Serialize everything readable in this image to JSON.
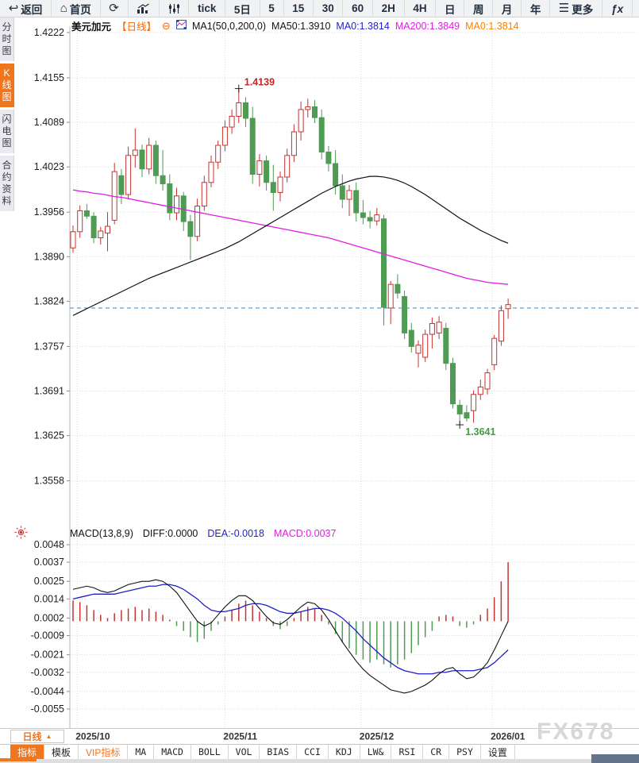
{
  "toolbar": {
    "items": [
      {
        "name": "back",
        "label": "返回",
        "icon": "back-icon"
      },
      {
        "name": "home",
        "label": "首页",
        "icon": "home-icon"
      },
      {
        "name": "refresh",
        "label": "",
        "icon": "refresh-icon"
      },
      {
        "name": "chart-type-bar",
        "label": "",
        "icon": "bar-chart-icon"
      },
      {
        "name": "chart-type-candle",
        "label": "",
        "icon": "sliders-icon"
      },
      {
        "name": "interval-tick",
        "label": "tick",
        "icon": ""
      },
      {
        "name": "interval-5day",
        "label": "5日",
        "icon": ""
      },
      {
        "name": "interval-5min",
        "label": "5",
        "icon": ""
      },
      {
        "name": "interval-15min",
        "label": "15",
        "icon": ""
      },
      {
        "name": "interval-30min",
        "label": "30",
        "icon": ""
      },
      {
        "name": "interval-60min",
        "label": "60",
        "icon": ""
      },
      {
        "name": "interval-2h",
        "label": "2H",
        "icon": ""
      },
      {
        "name": "interval-day",
        "label": "4H",
        "icon": ""
      },
      {
        "name": "interval-daily",
        "label": "日",
        "icon": ""
      },
      {
        "name": "interval-week",
        "label": "周",
        "icon": ""
      },
      {
        "name": "interval-month",
        "label": "月",
        "icon": ""
      },
      {
        "name": "interval-year",
        "label": "年",
        "icon": ""
      },
      {
        "name": "more",
        "label": "更多",
        "icon": "menu-icon"
      },
      {
        "name": "formula",
        "label": "",
        "icon": "fx-icon"
      },
      {
        "name": "zoom-out",
        "label": "",
        "icon": "zoom-out-icon"
      }
    ]
  },
  "sidebar": {
    "items": [
      {
        "label": "分时图",
        "selected": false
      },
      {
        "label": "K线图",
        "selected": true
      },
      {
        "label": "闪电图",
        "selected": false
      },
      {
        "label": "合约资料",
        "selected": false
      }
    ]
  },
  "symbol_header": {
    "symbol": "美元加元",
    "period": "【日线】",
    "ma_settings": "MA1(50,0,200,0)",
    "ma50": "MA50:1.3910",
    "ma0_blue": "MA0:1.3814",
    "ma200": "MA200:1.3849",
    "ma0_orange": "MA0:1.3814"
  },
  "macd_header": {
    "title": "MACD(13,8,9)",
    "diff": "DIFF:0.0000",
    "dea": "DEA:-0.0018",
    "macd": "MACD:0.0037"
  },
  "footer": {
    "period_button": "日线",
    "watermark": "FX678",
    "tabs": [
      {
        "label": "指标",
        "selected": true
      },
      {
        "label": "模板"
      },
      {
        "label": "VIP指标",
        "vip": true
      },
      {
        "label": "MA"
      },
      {
        "label": "MACD"
      },
      {
        "label": "BOLL"
      },
      {
        "label": "VOL"
      },
      {
        "label": "BIAS"
      },
      {
        "label": "CCI"
      },
      {
        "label": "KDJ"
      },
      {
        "label": "LW&"
      },
      {
        "label": "RSI"
      },
      {
        "label": "CR"
      },
      {
        "label": "PSY"
      },
      {
        "label": "设置"
      }
    ]
  },
  "colors": {
    "up": "#c53331",
    "down": "#4e9b53",
    "ma50": "#111111",
    "ma200": "#e51ae5",
    "dea": "#1f1fc8",
    "diff": "#111111",
    "price_line": "#4596e0",
    "accent_orange": "#f0761d",
    "annotation_high": "#cc2222",
    "annotation_low": "#3fa03f",
    "grid": "#dcdcdc"
  },
  "chart_data": {
    "type": "candlestick",
    "title": "美元加元 日线 (USD/CAD Daily) with MA50/MA200 and MACD(13,8,9)",
    "price_axis": {
      "max": 1.4222,
      "min": 1.3558,
      "labels": [
        "1.4222",
        "1.4155",
        "1.4089",
        "1.4023",
        "1.3956",
        "1.3890",
        "1.3824",
        "1.3757",
        "1.3691",
        "1.3625",
        "1.3558"
      ]
    },
    "x_axis": {
      "labels": [
        "2025/10",
        "2025/11",
        "2025/12",
        "2026/01"
      ],
      "label_positions": [
        0.6,
        22,
        41.7,
        60.7
      ]
    },
    "current_price": 1.3814,
    "annotations": {
      "high": {
        "index": 24,
        "price": 1.4139,
        "label": "1.4139"
      },
      "low": {
        "index": 56,
        "price": 1.3641,
        "label": "1.3641"
      }
    },
    "candles": [
      [
        1.3903,
        1.3936,
        1.3896,
        1.3927
      ],
      [
        1.3927,
        1.3966,
        1.3918,
        1.3958
      ],
      [
        1.3958,
        1.3968,
        1.3946,
        1.395
      ],
      [
        1.395,
        1.3956,
        1.391,
        1.3918
      ],
      [
        1.3918,
        1.3934,
        1.3908,
        1.3928
      ],
      [
        1.3925,
        1.3956,
        1.3898,
        1.3935
      ],
      [
        1.3944,
        1.4029,
        1.3938,
        1.4016
      ],
      [
        1.401,
        1.402,
        1.3968,
        1.3982
      ],
      [
        1.3982,
        1.4053,
        1.3975,
        1.404
      ],
      [
        1.404,
        1.408,
        1.4022,
        1.4048
      ],
      [
        1.4048,
        1.4056,
        1.4008,
        1.402
      ],
      [
        1.402,
        1.4066,
        1.4012,
        1.4055
      ],
      [
        1.4055,
        1.4062,
        1.3998,
        1.401
      ],
      [
        1.401,
        1.4048,
        1.3988,
        1.3998
      ],
      [
        1.3998,
        1.4012,
        1.3944,
        1.3955
      ],
      [
        1.3955,
        1.3992,
        1.3944,
        1.398
      ],
      [
        1.398,
        1.3986,
        1.3928,
        1.3942
      ],
      [
        1.3942,
        1.3952,
        1.3885,
        1.392
      ],
      [
        1.392,
        1.3976,
        1.3913,
        1.3965
      ],
      [
        1.3965,
        1.401,
        1.3958,
        1.4
      ],
      [
        1.4,
        1.404,
        1.3993,
        1.403
      ],
      [
        1.403,
        1.4062,
        1.402,
        1.4055
      ],
      [
        1.4055,
        1.4092,
        1.4046,
        1.4082
      ],
      [
        1.4082,
        1.4108,
        1.4072,
        1.4098
      ],
      [
        1.4098,
        1.4139,
        1.4088,
        1.4118
      ],
      [
        1.4118,
        1.4126,
        1.4082,
        1.4095
      ],
      [
        1.4095,
        1.4112,
        1.3998,
        1.4012
      ],
      [
        1.4012,
        1.4042,
        1.3994,
        1.4032
      ],
      [
        1.4032,
        1.404,
        1.3988,
        1.4
      ],
      [
        1.4,
        1.4026,
        1.3958,
        1.3985
      ],
      [
        1.3985,
        1.4016,
        1.3972,
        1.4008
      ],
      [
        1.4008,
        1.405,
        1.4,
        1.404
      ],
      [
        1.404,
        1.4086,
        1.403,
        1.4075
      ],
      [
        1.4075,
        1.412,
        1.4062,
        1.4108
      ],
      [
        1.4108,
        1.4124,
        1.4096,
        1.4112
      ],
      [
        1.4112,
        1.4122,
        1.4088,
        1.4096
      ],
      [
        1.4096,
        1.4108,
        1.4034,
        1.4045
      ],
      [
        1.4045,
        1.4054,
        1.4016,
        1.4028
      ],
      [
        1.4028,
        1.4048,
        1.3982,
        1.3995
      ],
      [
        1.3995,
        1.4012,
        1.3962,
        1.3975
      ],
      [
        1.3975,
        1.3996,
        1.395,
        1.3988
      ],
      [
        1.3988,
        1.4,
        1.3942,
        1.3955
      ],
      [
        1.3955,
        1.3974,
        1.3938,
        1.3948
      ],
      [
        1.3948,
        1.3958,
        1.3932,
        1.3943
      ],
      [
        1.3943,
        1.3962,
        1.3936,
        1.3952
      ],
      [
        1.3946,
        1.3952,
        1.3788,
        1.3815
      ],
      [
        1.3814,
        1.3854,
        1.379,
        1.3849
      ],
      [
        1.3849,
        1.3864,
        1.3828,
        1.3836
      ],
      [
        1.3831,
        1.384,
        1.3768,
        1.3777
      ],
      [
        1.3781,
        1.3792,
        1.3748,
        1.3757
      ],
      [
        1.3747,
        1.3766,
        1.3726,
        1.3759
      ],
      [
        1.3741,
        1.3782,
        1.3734,
        1.3775
      ],
      [
        1.3775,
        1.38,
        1.3754,
        1.3791
      ],
      [
        1.3777,
        1.3802,
        1.3768,
        1.3793
      ],
      [
        1.3784,
        1.3792,
        1.3722,
        1.3732
      ],
      [
        1.3732,
        1.374,
        1.3665,
        1.3672
      ],
      [
        1.367,
        1.3678,
        1.3641,
        1.3657
      ],
      [
        1.3659,
        1.367,
        1.3646,
        1.3651
      ],
      [
        1.3662,
        1.3692,
        1.3644,
        1.3686
      ],
      [
        1.3686,
        1.3708,
        1.3678,
        1.3697
      ],
      [
        1.3694,
        1.3724,
        1.3686,
        1.3718
      ],
      [
        1.373,
        1.3774,
        1.3722,
        1.3769
      ],
      [
        1.3765,
        1.3818,
        1.3758,
        1.381
      ],
      [
        1.3813,
        1.3828,
        1.3798,
        1.3819
      ]
    ],
    "ma50": [
      1.3803,
      1.3808,
      1.3813,
      1.3818,
      1.3823,
      1.3828,
      1.3833,
      1.3838,
      1.3843,
      1.3848,
      1.3853,
      1.3858,
      1.3862,
      1.3866,
      1.387,
      1.3874,
      1.3878,
      1.3882,
      1.3886,
      1.389,
      1.3894,
      1.3898,
      1.3902,
      1.3907,
      1.3912,
      1.3918,
      1.3924,
      1.393,
      1.3936,
      1.3942,
      1.3948,
      1.3954,
      1.396,
      1.3966,
      1.3972,
      1.3978,
      1.3984,
      1.3989,
      1.3994,
      1.3998,
      1.4002,
      1.4005,
      1.4007,
      1.4009,
      1.4009,
      1.4008,
      1.4006,
      1.4003,
      1.3999,
      1.3994,
      1.3988,
      1.3982,
      1.3975,
      1.3968,
      1.3961,
      1.3954,
      1.3947,
      1.3941,
      1.3935,
      1.3929,
      1.3924,
      1.3919,
      1.3914,
      1.391
    ],
    "ma200": [
      1.3989,
      1.3987,
      1.3986,
      1.3984,
      1.3983,
      1.3981,
      1.3979,
      1.3978,
      1.3976,
      1.3974,
      1.3972,
      1.397,
      1.3968,
      1.3966,
      1.3964,
      1.3962,
      1.396,
      1.3958,
      1.3956,
      1.3954,
      1.3952,
      1.395,
      1.3948,
      1.3946,
      1.3944,
      1.3942,
      1.394,
      1.3938,
      1.3936,
      1.3934,
      1.3932,
      1.393,
      1.3928,
      1.3926,
      1.3924,
      1.3922,
      1.392,
      1.3918,
      1.3915,
      1.3912,
      1.3909,
      1.3906,
      1.3903,
      1.39,
      1.3897,
      1.3894,
      1.3891,
      1.3888,
      1.3885,
      1.3882,
      1.3879,
      1.3876,
      1.3873,
      1.387,
      1.3867,
      1.3864,
      1.3861,
      1.3858,
      1.3856,
      1.3854,
      1.3852,
      1.3851,
      1.385,
      1.3849
    ],
    "macd": {
      "axis_max": 0.0048,
      "axis_min": -0.0055,
      "labels": [
        "0.0048",
        "0.0037",
        "0.0025",
        "0.0014",
        "0.0002",
        "-0.0009",
        "-0.0021",
        "-0.0032",
        "-0.0044",
        "-0.0055"
      ],
      "histogram": [
        0.0013,
        0.0012,
        0.001,
        0.0007,
        0.0004,
        0.0002,
        0.0005,
        0.0007,
        0.0008,
        0.0009,
        0.0007,
        0.0008,
        0.0006,
        0.0004,
        0.0001,
        -0.0003,
        -0.0006,
        -0.001,
        -0.0013,
        -0.0011,
        -0.0006,
        -0.0002,
        0.0003,
        0.0007,
        0.0011,
        0.0013,
        0.001,
        0.0006,
        0.0002,
        -0.0003,
        -0.0005,
        -0.0003,
        0.0002,
        0.0006,
        0.0009,
        0.0008,
        0.0004,
        -0.0002,
        -0.0008,
        -0.0013,
        -0.0017,
        -0.0021,
        -0.0024,
        -0.0026,
        -0.0024,
        -0.0027,
        -0.0029,
        -0.0027,
        -0.0024,
        -0.002,
        -0.0015,
        -0.001,
        -0.0006,
        0.0003,
        0.0004,
        0.0003,
        -0.0003,
        -0.0004,
        -0.0002,
        0.0004,
        0.0008,
        0.0015,
        0.0025,
        0.0037
      ],
      "diff": [
        0.002,
        0.0021,
        0.0022,
        0.0021,
        0.0019,
        0.0018,
        0.0019,
        0.0021,
        0.0023,
        0.0024,
        0.0025,
        0.0025,
        0.0026,
        0.0025,
        0.0022,
        0.0018,
        0.0012,
        0.0006,
        0.0,
        -0.0003,
        -0.0001,
        0.0004,
        0.0009,
        0.0013,
        0.0016,
        0.0016,
        0.0013,
        0.0008,
        0.0003,
        -0.0001,
        -0.0002,
        0.0001,
        0.0005,
        0.0009,
        0.0012,
        0.0011,
        0.0007,
        0.0001,
        -0.0006,
        -0.0013,
        -0.0019,
        -0.0025,
        -0.003,
        -0.0034,
        -0.0037,
        -0.004,
        -0.0043,
        -0.0044,
        -0.0045,
        -0.0044,
        -0.0042,
        -0.004,
        -0.0037,
        -0.0033,
        -0.003,
        -0.0029,
        -0.0033,
        -0.0036,
        -0.0035,
        -0.0031,
        -0.0026,
        -0.0018,
        -0.0009,
        0.0
      ],
      "dea": [
        0.0014,
        0.0015,
        0.0016,
        0.0017,
        0.0017,
        0.0017,
        0.0017,
        0.0018,
        0.0019,
        0.002,
        0.0021,
        0.0022,
        0.0022,
        0.0023,
        0.0023,
        0.0022,
        0.002,
        0.0017,
        0.0014,
        0.001,
        0.0007,
        0.0006,
        0.0006,
        0.0007,
        0.0008,
        0.001,
        0.0011,
        0.0011,
        0.001,
        0.0008,
        0.0006,
        0.0005,
        0.0005,
        0.0006,
        0.0007,
        0.0008,
        0.0008,
        0.0007,
        0.0005,
        0.0002,
        -0.0002,
        -0.0006,
        -0.0011,
        -0.0015,
        -0.0019,
        -0.0023,
        -0.0026,
        -0.0029,
        -0.0031,
        -0.0032,
        -0.0033,
        -0.0033,
        -0.0033,
        -0.0032,
        -0.0032,
        -0.0031,
        -0.0031,
        -0.0031,
        -0.0031,
        -0.003,
        -0.0029,
        -0.0026,
        -0.0022,
        -0.0018
      ]
    }
  }
}
